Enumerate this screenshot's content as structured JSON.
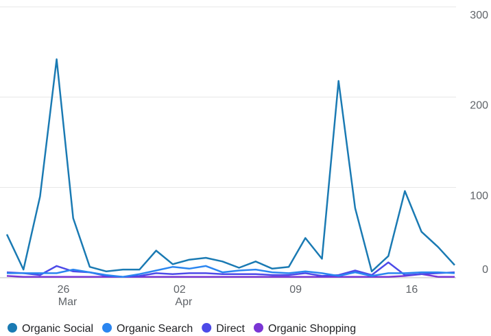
{
  "chart_data": {
    "type": "line",
    "categories": [
      null,
      null,
      null,
      "26",
      null,
      null,
      null,
      null,
      null,
      null,
      "02",
      null,
      null,
      null,
      null,
      null,
      null,
      "09",
      null,
      null,
      null,
      null,
      null,
      null,
      "16",
      null,
      null,
      null
    ],
    "month_labels": [
      null,
      null,
      null,
      "Mar",
      null,
      null,
      null,
      null,
      null,
      null,
      "Apr",
      null,
      null,
      null,
      null,
      null,
      null,
      null,
      null,
      null,
      null,
      null,
      null,
      null,
      null,
      null,
      null,
      null
    ],
    "series": [
      {
        "name": "Organic Social",
        "color": "#1a7ab3",
        "values": [
          48,
          9,
          90,
          242,
          66,
          12,
          7,
          9,
          9,
          30,
          15,
          20,
          22,
          18,
          11,
          18,
          10,
          12,
          44,
          21,
          218,
          77,
          7,
          24,
          96,
          51,
          34,
          14
        ]
      },
      {
        "name": "Organic Search",
        "color": "#2a85f0",
        "values": [
          5,
          5,
          5,
          5,
          9,
          6,
          3,
          1,
          4,
          8,
          12,
          10,
          13,
          6,
          8,
          9,
          6,
          5,
          7,
          5,
          2,
          6,
          2,
          5,
          5,
          6,
          6,
          5
        ]
      },
      {
        "name": "Direct",
        "color": "#4c4ae8",
        "values": [
          6,
          5,
          3,
          13,
          7,
          6,
          2,
          1,
          2,
          5,
          4,
          5,
          5,
          4,
          4,
          4,
          3,
          3,
          5,
          2,
          3,
          8,
          3,
          17,
          3,
          4,
          5,
          6
        ]
      },
      {
        "name": "Organic Shopping",
        "color": "#7a35d4",
        "values": [
          2,
          1,
          1,
          1,
          1,
          1,
          1,
          1,
          1,
          1,
          1,
          1,
          1,
          1,
          1,
          1,
          1,
          1,
          1,
          1,
          1,
          1,
          1,
          1,
          2,
          4,
          1,
          1
        ]
      }
    ],
    "ylim": [
      0,
      300
    ],
    "yticks": [
      0,
      100,
      200,
      300
    ],
    "grid": true,
    "legend": "bottom"
  }
}
